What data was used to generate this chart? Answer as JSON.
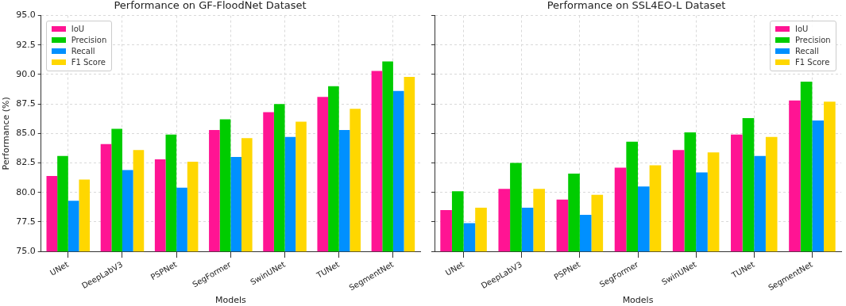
{
  "chart_data": [
    {
      "type": "bar",
      "title": "Performance on GF-FloodNet Dataset",
      "xlabel": "Models",
      "ylabel": "Performance (%)",
      "categories": [
        "UNet",
        "DeepLabV3",
        "PSPNet",
        "SegFormer",
        "SwinUNet",
        "TUNet",
        "SegmentNet"
      ],
      "series": [
        {
          "name": "IoU",
          "color": "#ff1493",
          "values": [
            81.4,
            84.1,
            82.8,
            85.3,
            86.8,
            88.1,
            90.3
          ]
        },
        {
          "name": "Precision",
          "color": "#00cc00",
          "values": [
            83.1,
            85.4,
            84.9,
            86.2,
            87.5,
            89.0,
            91.1
          ]
        },
        {
          "name": "Recall",
          "color": "#0090ff",
          "values": [
            79.3,
            81.9,
            80.4,
            83.0,
            84.7,
            85.3,
            88.6
          ]
        },
        {
          "name": "F1 Score",
          "color": "#ffd700",
          "values": [
            81.1,
            83.6,
            82.6,
            84.6,
            86.0,
            87.1,
            89.8
          ]
        }
      ],
      "ylim": [
        75,
        95
      ],
      "yticks": [
        {
          "value": 75,
          "label": "75.0"
        },
        {
          "value": 77.5,
          "label": "77.5"
        },
        {
          "value": 80,
          "label": "80.0"
        },
        {
          "value": 82.5,
          "label": "82.5"
        },
        {
          "value": 85,
          "label": "85.0"
        },
        {
          "value": 87.5,
          "label": "87.5"
        },
        {
          "value": 90,
          "label": "90.0"
        },
        {
          "value": 92.5,
          "label": "92.5"
        },
        {
          "value": 95,
          "label": "95.0"
        }
      ],
      "grid": true,
      "legend": "top left"
    },
    {
      "type": "bar",
      "title": "Performance on SSL4EO-L Dataset",
      "xlabel": "Models",
      "categories": [
        "UNet",
        "DeepLabV3",
        "PSPNet",
        "SegFormer",
        "SwinUNet",
        "TUNet",
        "SegmentNet"
      ],
      "series": [
        {
          "name": "IoU",
          "color": "#ff1493",
          "values": [
            78.5,
            80.3,
            79.4,
            82.1,
            83.6,
            84.9,
            87.8
          ]
        },
        {
          "name": "Precision",
          "color": "#00cc00",
          "values": [
            80.1,
            82.5,
            81.6,
            84.3,
            85.1,
            86.3,
            89.4
          ]
        },
        {
          "name": "Recall",
          "color": "#0090ff",
          "values": [
            77.4,
            78.7,
            78.1,
            80.5,
            81.7,
            83.1,
            86.1
          ]
        },
        {
          "name": "F1 Score",
          "color": "#ffd700",
          "values": [
            78.7,
            80.3,
            79.8,
            82.3,
            83.4,
            84.7,
            87.7
          ]
        }
      ],
      "ylim": [
        75,
        95
      ],
      "yticks": [
        {
          "value": 75,
          "label": null
        },
        {
          "value": 77.5,
          "label": null
        },
        {
          "value": 80,
          "label": null
        },
        {
          "value": 82.5,
          "label": null
        },
        {
          "value": 85,
          "label": null
        },
        {
          "value": 87.5,
          "label": null
        },
        {
          "value": 90,
          "label": null
        },
        {
          "value": 92.5,
          "label": null
        },
        {
          "value": 95,
          "label": null
        }
      ],
      "grid": true,
      "legend": "top right",
      "tick_labels": "x"
    }
  ]
}
